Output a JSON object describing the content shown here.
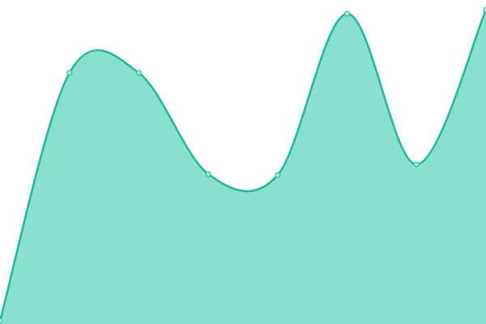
{
  "chart_data": {
    "type": "area",
    "categories": [
      null,
      null,
      null,
      null,
      null,
      null,
      null,
      null
    ],
    "values": [
      1,
      77.5,
      77.5,
      46.25,
      46,
      95.75,
      49.25,
      97
    ],
    "ylim": [
      0,
      100
    ],
    "color": "#1fb99a",
    "area_color": "#88e0cf",
    "point_fill": "#a5e8da"
  }
}
